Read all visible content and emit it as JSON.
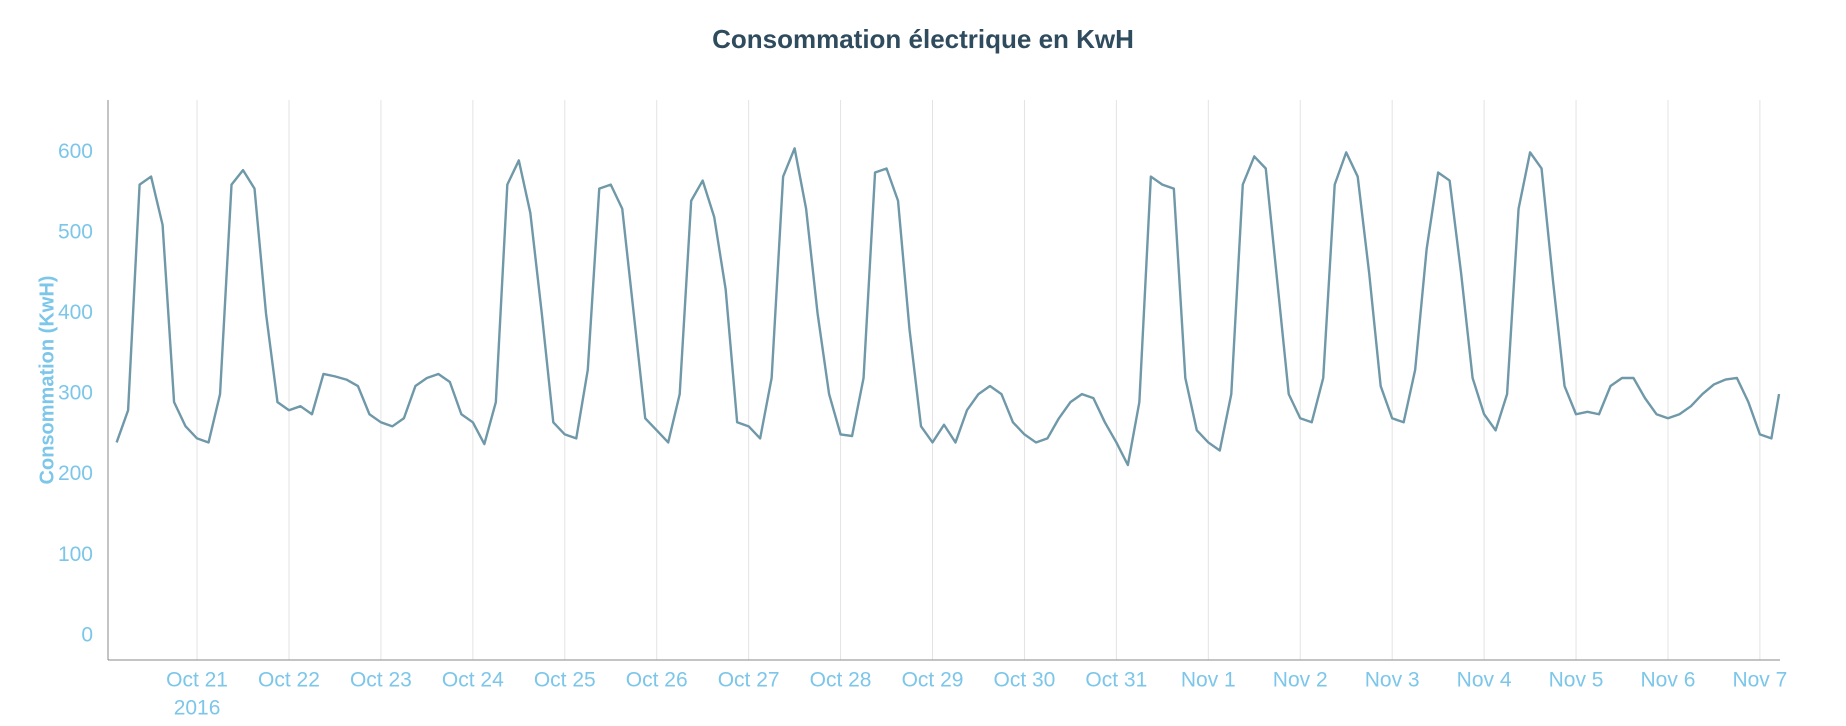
{
  "chart_data": {
    "type": "line",
    "title": "Consommation électrique en KwH",
    "y_label": "Consommation (KwH)",
    "x_year_label": "2016",
    "grid": true,
    "xlim": [
      "2016-10-20 00:45",
      "2016-11-07 05:15"
    ],
    "ylim": [
      -30,
      665
    ],
    "yticks": [
      0,
      100,
      200,
      300,
      400,
      500,
      600
    ],
    "xticks": [
      {
        "value": "2016-10-21 00:00",
        "label": "Oct 21"
      },
      {
        "value": "2016-10-22 00:00",
        "label": "Oct 22"
      },
      {
        "value": "2016-10-23 00:00",
        "label": "Oct 23"
      },
      {
        "value": "2016-10-24 00:00",
        "label": "Oct 24"
      },
      {
        "value": "2016-10-25 00:00",
        "label": "Oct 25"
      },
      {
        "value": "2016-10-26 00:00",
        "label": "Oct 26"
      },
      {
        "value": "2016-10-27 00:00",
        "label": "Oct 27"
      },
      {
        "value": "2016-10-28 00:00",
        "label": "Oct 28"
      },
      {
        "value": "2016-10-29 00:00",
        "label": "Oct 29"
      },
      {
        "value": "2016-10-30 00:00",
        "label": "Oct 30"
      },
      {
        "value": "2016-10-31 00:00",
        "label": "Oct 31"
      },
      {
        "value": "2016-11-01 00:00",
        "label": "Nov 1"
      },
      {
        "value": "2016-11-02 00:00",
        "label": "Nov 2"
      },
      {
        "value": "2016-11-03 00:00",
        "label": "Nov 3"
      },
      {
        "value": "2016-11-04 00:00",
        "label": "Nov 4"
      },
      {
        "value": "2016-11-05 00:00",
        "label": "Nov 5"
      },
      {
        "value": "2016-11-06 00:00",
        "label": "Nov 6"
      },
      {
        "value": "2016-11-07 00:00",
        "label": "Nov 7"
      }
    ],
    "x": [
      "2016-10-20 03:00",
      "2016-10-20 06:00",
      "2016-10-20 09:00",
      "2016-10-20 12:00",
      "2016-10-20 15:00",
      "2016-10-20 18:00",
      "2016-10-20 21:00",
      "2016-10-21 00:00",
      "2016-10-21 03:00",
      "2016-10-21 06:00",
      "2016-10-21 09:00",
      "2016-10-21 12:00",
      "2016-10-21 15:00",
      "2016-10-21 18:00",
      "2016-10-21 21:00",
      "2016-10-22 00:00",
      "2016-10-22 03:00",
      "2016-10-22 06:00",
      "2016-10-22 09:00",
      "2016-10-22 12:00",
      "2016-10-22 15:00",
      "2016-10-22 18:00",
      "2016-10-22 21:00",
      "2016-10-23 00:00",
      "2016-10-23 03:00",
      "2016-10-23 06:00",
      "2016-10-23 09:00",
      "2016-10-23 12:00",
      "2016-10-23 15:00",
      "2016-10-23 18:00",
      "2016-10-23 21:00",
      "2016-10-24 00:00",
      "2016-10-24 03:00",
      "2016-10-24 06:00",
      "2016-10-24 09:00",
      "2016-10-24 12:00",
      "2016-10-24 15:00",
      "2016-10-24 18:00",
      "2016-10-24 21:00",
      "2016-10-25 00:00",
      "2016-10-25 03:00",
      "2016-10-25 06:00",
      "2016-10-25 09:00",
      "2016-10-25 12:00",
      "2016-10-25 15:00",
      "2016-10-25 18:00",
      "2016-10-25 21:00",
      "2016-10-26 00:00",
      "2016-10-26 03:00",
      "2016-10-26 06:00",
      "2016-10-26 09:00",
      "2016-10-26 12:00",
      "2016-10-26 15:00",
      "2016-10-26 18:00",
      "2016-10-26 21:00",
      "2016-10-27 00:00",
      "2016-10-27 03:00",
      "2016-10-27 06:00",
      "2016-10-27 09:00",
      "2016-10-27 12:00",
      "2016-10-27 15:00",
      "2016-10-27 18:00",
      "2016-10-27 21:00",
      "2016-10-28 00:00",
      "2016-10-28 03:00",
      "2016-10-28 06:00",
      "2016-10-28 09:00",
      "2016-10-28 12:00",
      "2016-10-28 15:00",
      "2016-10-28 18:00",
      "2016-10-28 21:00",
      "2016-10-29 00:00",
      "2016-10-29 03:00",
      "2016-10-29 06:00",
      "2016-10-29 09:00",
      "2016-10-29 12:00",
      "2016-10-29 15:00",
      "2016-10-29 18:00",
      "2016-10-29 21:00",
      "2016-10-30 00:00",
      "2016-10-30 03:00",
      "2016-10-30 06:00",
      "2016-10-30 09:00",
      "2016-10-30 12:00",
      "2016-10-30 15:00",
      "2016-10-30 18:00",
      "2016-10-30 21:00",
      "2016-10-31 00:00",
      "2016-10-31 03:00",
      "2016-10-31 06:00",
      "2016-10-31 09:00",
      "2016-10-31 12:00",
      "2016-10-31 15:00",
      "2016-10-31 18:00",
      "2016-10-31 21:00",
      "2016-11-01 00:00",
      "2016-11-01 03:00",
      "2016-11-01 06:00",
      "2016-11-01 09:00",
      "2016-11-01 12:00",
      "2016-11-01 15:00",
      "2016-11-01 18:00",
      "2016-11-01 21:00",
      "2016-11-02 00:00",
      "2016-11-02 03:00",
      "2016-11-02 06:00",
      "2016-11-02 09:00",
      "2016-11-02 12:00",
      "2016-11-02 15:00",
      "2016-11-02 18:00",
      "2016-11-02 21:00",
      "2016-11-03 00:00",
      "2016-11-03 03:00",
      "2016-11-03 06:00",
      "2016-11-03 09:00",
      "2016-11-03 12:00",
      "2016-11-03 15:00",
      "2016-11-03 18:00",
      "2016-11-03 21:00",
      "2016-11-04 00:00",
      "2016-11-04 03:00",
      "2016-11-04 06:00",
      "2016-11-04 09:00",
      "2016-11-04 12:00",
      "2016-11-04 15:00",
      "2016-11-04 18:00",
      "2016-11-04 21:00",
      "2016-11-05 00:00",
      "2016-11-05 03:00",
      "2016-11-05 06:00",
      "2016-11-05 09:00",
      "2016-11-05 12:00",
      "2016-11-05 15:00",
      "2016-11-05 18:00",
      "2016-11-05 21:00",
      "2016-11-06 00:00",
      "2016-11-06 03:00",
      "2016-11-06 06:00",
      "2016-11-06 09:00",
      "2016-11-06 12:00",
      "2016-11-06 15:00",
      "2016-11-06 18:00",
      "2016-11-06 21:00",
      "2016-11-07 00:00",
      "2016-11-07 03:00",
      "2016-11-07 05:00"
    ],
    "series": [
      {
        "name": "Consommation",
        "color": "#6f98a8",
        "values": [
          240,
          280,
          560,
          570,
          510,
          290,
          260,
          245,
          240,
          300,
          560,
          578,
          555,
          400,
          290,
          280,
          285,
          275,
          325,
          322,
          318,
          310,
          275,
          265,
          260,
          270,
          310,
          320,
          325,
          315,
          275,
          265,
          238,
          290,
          560,
          590,
          525,
          400,
          265,
          250,
          245,
          330,
          555,
          560,
          530,
          400,
          270,
          255,
          240,
          300,
          540,
          565,
          520,
          430,
          265,
          260,
          245,
          320,
          570,
          605,
          530,
          400,
          300,
          250,
          248,
          320,
          575,
          580,
          540,
          380,
          260,
          240,
          262,
          240,
          280,
          300,
          310,
          300,
          265,
          250,
          240,
          245,
          270,
          290,
          300,
          295,
          265,
          240,
          212,
          290,
          570,
          560,
          555,
          320,
          255,
          240,
          230,
          300,
          560,
          595,
          580,
          440,
          300,
          270,
          265,
          320,
          560,
          600,
          570,
          450,
          310,
          270,
          265,
          330,
          480,
          575,
          565,
          450,
          320,
          275,
          255,
          300,
          530,
          600,
          580,
          440,
          310,
          275,
          278,
          275,
          310,
          320,
          320,
          295,
          275,
          270,
          275,
          285,
          300,
          312,
          318,
          320,
          290,
          250,
          245,
          300
        ]
      }
    ]
  }
}
